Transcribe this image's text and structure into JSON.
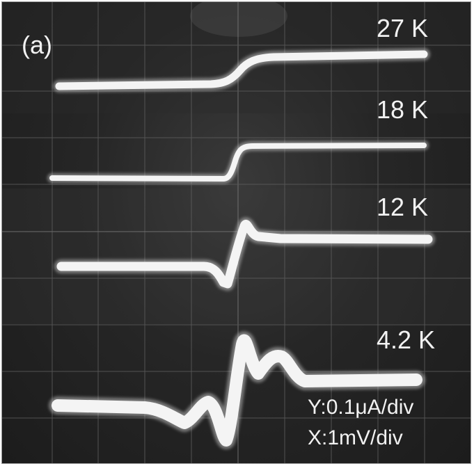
{
  "panel_label": "(a)",
  "traces": [
    {
      "temperature": "27 K"
    },
    {
      "temperature": "18 K"
    },
    {
      "temperature": "12 K"
    },
    {
      "temperature": "4.2 K"
    }
  ],
  "scale": {
    "y": "Y:0.1μA/div",
    "x": "X:1mV/div"
  },
  "colors": {
    "screen": "#222222",
    "trace": "#f4f4f4",
    "grid": "#5c5c5c"
  }
}
